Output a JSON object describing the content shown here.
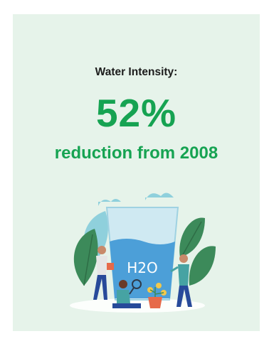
{
  "metric": {
    "label": "Water Intensity:",
    "value": "52%",
    "description": "reduction from 2008"
  },
  "illustration": {
    "glass_text": "H2O",
    "icons": [
      "cloud-icon",
      "water-glass-icon",
      "leaf-icon",
      "person-icon",
      "magnifier-icon",
      "flower-pot-icon"
    ]
  },
  "colors": {
    "background": "#e6f3ea",
    "accent": "#16a352",
    "water": "#4c9fd8",
    "leaf_dark": "#3c8a5a",
    "text_dark": "#1c1c1c"
  }
}
